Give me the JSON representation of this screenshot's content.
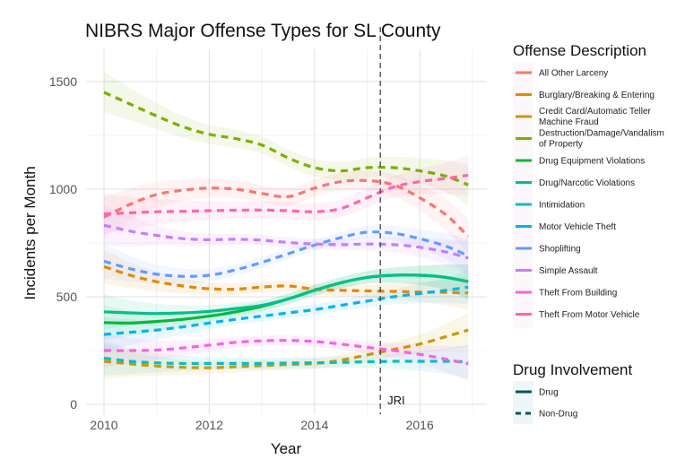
{
  "chart_data": {
    "type": "line",
    "title": "NIBRS Major Offense Types for SL County",
    "xlabel": "Year",
    "ylabel": "Incidents per Month",
    "xlim": [
      2009.65,
      2017.25
    ],
    "ylim": [
      -20,
      1640
    ],
    "x_ticks": [
      2010,
      2012,
      2014,
      2016
    ],
    "x_tick_labels": [
      "2010",
      "2012",
      "2014",
      "2016"
    ],
    "y_ticks": [
      0,
      500,
      1000,
      1500
    ],
    "y_tick_labels": [
      "0",
      "500",
      "1000",
      "1500"
    ],
    "grid": true,
    "x": [
      2010,
      2010.5,
      2011,
      2011.5,
      2012,
      2012.5,
      2013,
      2013.5,
      2014,
      2014.5,
      2015,
      2015.5,
      2016,
      2016.5,
      2016.92
    ],
    "series": [
      {
        "name": "All Other Larceny",
        "color": "#F8766D",
        "drug": "Non-Drug",
        "values": [
          870,
          930,
          975,
          995,
          1005,
          1000,
          980,
          965,
          1005,
          1035,
          1040,
          1020,
          960,
          880,
          780
        ]
      },
      {
        "name": "Burglary/Breaking & Entering",
        "color": "#E58700",
        "drug": "Non-Drug",
        "values": [
          640,
          600,
          570,
          550,
          537,
          535,
          545,
          550,
          535,
          530,
          527,
          525,
          522,
          520,
          518
        ]
      },
      {
        "name": "Credit Card/Automatic Teller Machine Fraud",
        "color": "#C99800",
        "drug": "Non-Drug",
        "values": [
          200,
          188,
          178,
          172,
          170,
          175,
          180,
          185,
          190,
          205,
          230,
          255,
          280,
          315,
          345
        ]
      },
      {
        "name": "Destruction/Damage/Vandalism of Property",
        "color": "#7CAE00",
        "drug": "Non-Drug",
        "values": [
          1450,
          1395,
          1340,
          1290,
          1255,
          1235,
          1205,
          1145,
          1100,
          1085,
          1100,
          1100,
          1085,
          1060,
          1020
        ]
      },
      {
        "name": "Drug Equipment Violations",
        "color": "#00BA38",
        "drug": "Drug",
        "values": [
          380,
          378,
          385,
          395,
          410,
          430,
          455,
          490,
          530,
          565,
          590,
          600,
          600,
          590,
          570
        ]
      },
      {
        "name": "Drug/Narcotic Violations",
        "color": "#00C08B",
        "drug": "Drug",
        "values": [
          430,
          425,
          422,
          425,
          432,
          445,
          460,
          490,
          530,
          565,
          590,
          600,
          600,
          590,
          570
        ]
      },
      {
        "name": "Intimidation",
        "color": "#00BFC4",
        "drug": "Non-Drug",
        "values": [
          215,
          200,
          193,
          190,
          190,
          190,
          190,
          192,
          193,
          195,
          198,
          200,
          200,
          200,
          198
        ]
      },
      {
        "name": "Motor Vehicle Theft",
        "color": "#00B4F0",
        "drug": "Non-Drug",
        "values": [
          325,
          335,
          345,
          360,
          378,
          395,
          410,
          425,
          440,
          460,
          480,
          500,
          515,
          530,
          545
        ]
      },
      {
        "name": "Shoplifting",
        "color": "#619CFF",
        "drug": "Non-Drug",
        "values": [
          665,
          630,
          605,
          595,
          600,
          625,
          660,
          700,
          740,
          775,
          800,
          795,
          770,
          735,
          690
        ]
      },
      {
        "name": "Simple Assault",
        "color": "#C77CFF",
        "drug": "Non-Drug",
        "values": [
          832,
          805,
          785,
          770,
          765,
          767,
          763,
          752,
          745,
          742,
          745,
          742,
          730,
          708,
          680
        ]
      },
      {
        "name": "Theft From Building",
        "color": "#F564E3",
        "drug": "Non-Drug",
        "values": [
          250,
          250,
          252,
          262,
          275,
          288,
          295,
          297,
          292,
          280,
          265,
          250,
          232,
          210,
          188
        ]
      },
      {
        "name": "Theft From Motor Vehicle",
        "color": "#FF64B0",
        "drug": "Non-Drug",
        "values": [
          885,
          890,
          895,
          897,
          900,
          902,
          903,
          900,
          895,
          910,
          960,
          1010,
          1035,
          1050,
          1065
        ]
      }
    ],
    "annotations": [
      {
        "type": "vline",
        "x": 2015.25,
        "label": "JRI",
        "style": "dashed",
        "color": "#444444"
      }
    ],
    "legends": [
      {
        "title": "Offense Description",
        "placement": "right-top",
        "entries": [
          "All Other Larceny",
          "Burglary/Breaking & Entering",
          "Credit Card/Automatic Teller Machine Fraud",
          "Destruction/Damage/Vandalism of Property",
          "Drug Equipment Violations",
          "Drug/Narcotic Violations",
          "Intimidation",
          "Motor Vehicle Theft",
          "Shoplifting",
          "Simple Assault",
          "Theft From Building",
          "Theft From Motor Vehicle"
        ]
      },
      {
        "title": "Drug Involvement",
        "placement": "right-bottom",
        "entries": [
          "Drug",
          "Non-Drug"
        ],
        "color": "#10505C"
      }
    ]
  },
  "legend_display": {
    "offense": [
      [
        "All Other Larceny"
      ],
      [
        "Burglary/Breaking & Entering"
      ],
      [
        "Credit Card/Automatic Teller",
        "Machine Fraud"
      ],
      [
        "Destruction/Damage/Vandalism",
        "of Property"
      ],
      [
        "Drug Equipment Violations"
      ],
      [
        "Drug/Narcotic Violations"
      ],
      [
        "Intimidation"
      ],
      [
        "Motor Vehicle Theft"
      ],
      [
        "Shoplifting"
      ],
      [
        "Simple Assault"
      ],
      [
        "Theft From Building"
      ],
      [
        "Theft From Motor Vehicle"
      ]
    ]
  }
}
